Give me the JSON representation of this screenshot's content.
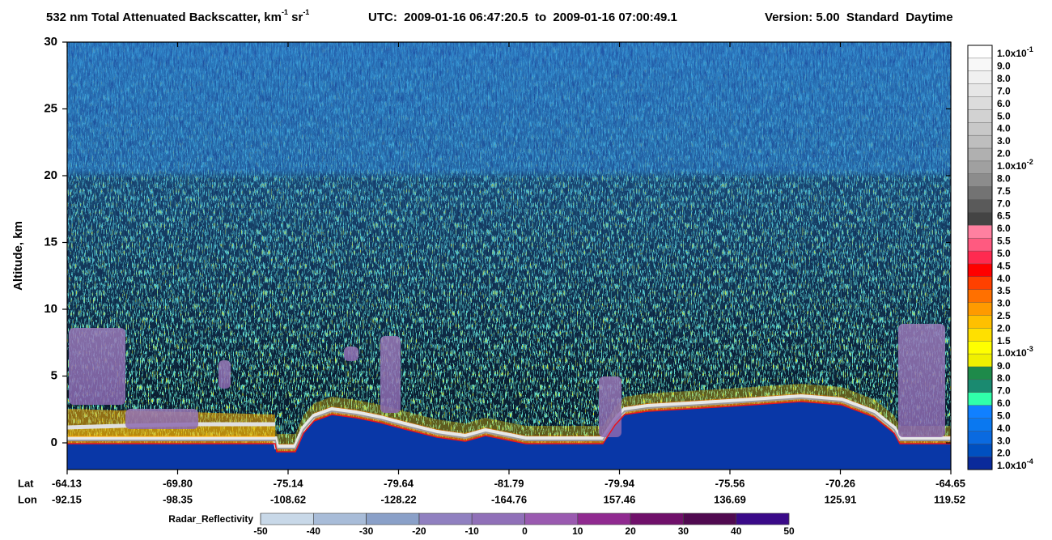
{
  "chart_data": {
    "type": "heatmap",
    "title": [
      "532 nm Total Attenuated Backscatter, km",
      "-1",
      " sr",
      "-1"
    ],
    "time_range": "UTC:  2009-01-16 06:47:20.5  to  2009-01-16 07:00:49.1",
    "version": "Version: 5.00  Standard  Daytime",
    "ylabel": "Altitude, km",
    "ylim": [
      -2,
      30
    ],
    "yticks": [
      0,
      5,
      10,
      15,
      20,
      25,
      30
    ],
    "x_rows": [
      {
        "name": "Lat",
        "labels": [
          "-64.13",
          "-69.80",
          "-75.14",
          "-79.64",
          "-81.79",
          "-79.94",
          "-75.56",
          "-70.26",
          "-64.65"
        ]
      },
      {
        "name": "Lon",
        "labels": [
          "-92.15",
          "-98.35",
          "-108.62",
          "-128.22",
          "-164.76",
          "157.46",
          "136.69",
          "125.91",
          "119.52"
        ]
      }
    ],
    "colorbar": {
      "labels": [
        {
          "base": "1.0x10",
          "exp": "-1"
        },
        "9.0",
        "8.0",
        "7.0",
        "6.0",
        "5.0",
        "4.0",
        "3.0",
        "2.0",
        {
          "base": "1.0x10",
          "exp": "-2"
        },
        "8.0",
        "7.5",
        "7.0",
        "6.5",
        "6.0",
        "5.5",
        "5.0",
        "4.5",
        "4.0",
        "3.5",
        "3.0",
        "2.5",
        "2.0",
        "1.5",
        {
          "base": "1.0x10",
          "exp": "-3"
        },
        "9.0",
        "8.0",
        "7.0",
        "6.0",
        "5.0",
        "4.0",
        "3.0",
        "2.0",
        {
          "base": "1.0x10",
          "exp": "-4"
        }
      ],
      "colors": [
        "#ffffff",
        "#f8f8f8",
        "#f0f0f0",
        "#e6e6e6",
        "#dcdcdc",
        "#d2d2d2",
        "#c8c8c8",
        "#bebebe",
        "#b0b0b0",
        "#a0a0a0",
        "#8c8c8c",
        "#737373",
        "#5a5a5a",
        "#444444",
        "#ff80a0",
        "#ff5a80",
        "#ff2a50",
        "#ff0000",
        "#ff4000",
        "#ff7000",
        "#ff9a00",
        "#ffc000",
        "#ffe000",
        "#ffff00",
        "#f0f000",
        "#1e8a4a",
        "#1a8a70",
        "#30ffaa",
        "#1080ff",
        "#0a78f0",
        "#0a6ae0",
        "#0050c0",
        "#0a2a9a"
      ]
    },
    "radar_colorbar": {
      "label": "Radar_Reflectivity",
      "lim": [
        -50,
        50
      ],
      "ticks": [
        -50,
        -40,
        -30,
        -20,
        -10,
        0,
        10,
        20,
        30,
        40,
        50
      ],
      "colors": [
        "#c8d8e8",
        "#a8bcd8",
        "#8aa0c8",
        "#9080c0",
        "#9070b8",
        "#9a5ab0",
        "#902a90",
        "#70106a",
        "#500a50",
        "#3a0a88"
      ]
    }
  }
}
